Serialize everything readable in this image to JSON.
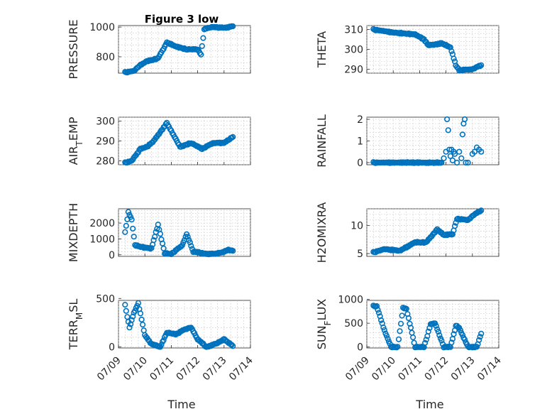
{
  "figure": {
    "title": "Figure 3 low",
    "marker_color": "#0072BD",
    "xlabel": "Time"
  },
  "chart_data": [
    {
      "type": "scatter",
      "ylabel": "PRESSURE",
      "ylabel_sub": "",
      "xticks": [
        "07/09",
        "07/10",
        "07/11",
        "07/12",
        "07/13",
        "07/14"
      ],
      "xlim": [
        "2023-07-09",
        "2023-07-14"
      ],
      "ylim": [
        690,
        1010
      ],
      "yticks": [
        800,
        1000
      ],
      "grid": true,
      "show_xlabels": false,
      "profile": [
        [
          "2023-07-09T06:00",
          695
        ],
        [
          "2023-07-09T14:00",
          705
        ],
        [
          "2023-07-09T20:00",
          745
        ],
        [
          "2023-07-10T02:00",
          770
        ],
        [
          "2023-07-10T12:00",
          790
        ],
        [
          "2023-07-10T20:00",
          895
        ],
        [
          "2023-07-11T04:00",
          870
        ],
        [
          "2023-07-11T14:00",
          850
        ],
        [
          "2023-07-12T00:00",
          850
        ],
        [
          "2023-07-12T03:00",
          815
        ],
        [
          "2023-07-12T06:00",
          985
        ],
        [
          "2023-07-12T12:00",
          1000
        ],
        [
          "2023-07-13T00:00",
          995
        ],
        [
          "2023-07-13T08:00",
          1005
        ]
      ]
    },
    {
      "type": "scatter",
      "ylabel": "THETA",
      "ylabel_sub": "",
      "xticks": [
        "07/09",
        "07/10",
        "07/11",
        "07/12",
        "07/13",
        "07/14"
      ],
      "xlim": [
        "2023-07-09",
        "2023-07-14"
      ],
      "ylim": [
        288,
        312
      ],
      "yticks": [
        290,
        300,
        310
      ],
      "grid": true,
      "show_xlabels": false,
      "profile": [
        [
          "2023-07-09T06:00",
          310
        ],
        [
          "2023-07-10T00:00",
          308.5
        ],
        [
          "2023-07-10T20:00",
          307.5
        ],
        [
          "2023-07-11T04:00",
          305
        ],
        [
          "2023-07-11T08:00",
          302
        ],
        [
          "2023-07-11T20:00",
          303
        ],
        [
          "2023-07-12T04:00",
          301
        ],
        [
          "2023-07-12T09:00",
          292
        ],
        [
          "2023-07-12T12:00",
          289.5
        ],
        [
          "2023-07-13T00:00",
          290
        ],
        [
          "2023-07-13T08:00",
          292
        ]
      ]
    },
    {
      "type": "scatter",
      "ylabel": "AIR",
      "ylabel_sub": "T",
      "ylabel_suffix": "EMP",
      "xticks": [
        "07/09",
        "07/10",
        "07/11",
        "07/12",
        "07/13",
        "07/14"
      ],
      "xlim": [
        "2023-07-09",
        "2023-07-14"
      ],
      "ylim": [
        278,
        302
      ],
      "yticks": [
        280,
        290,
        300
      ],
      "grid": true,
      "show_xlabels": false,
      "profile": [
        [
          "2023-07-09T06:00",
          279
        ],
        [
          "2023-07-09T12:00",
          280
        ],
        [
          "2023-07-09T20:00",
          286
        ],
        [
          "2023-07-10T02:00",
          287
        ],
        [
          "2023-07-10T08:00",
          290
        ],
        [
          "2023-07-10T20:00",
          299
        ],
        [
          "2023-07-11T08:00",
          287
        ],
        [
          "2023-07-11T18:00",
          289
        ],
        [
          "2023-07-12T04:00",
          286
        ],
        [
          "2023-07-12T14:00",
          289
        ],
        [
          "2023-07-13T00:00",
          289
        ],
        [
          "2023-07-13T08:00",
          292
        ]
      ]
    },
    {
      "type": "scatter",
      "ylabel": "RAINFALL",
      "ylabel_sub": "",
      "xticks": [
        "07/09",
        "07/10",
        "07/11",
        "07/12",
        "07/13",
        "07/14"
      ],
      "xlim": [
        "2023-07-09",
        "2023-07-14"
      ],
      "ylim": [
        -0.1,
        2.1
      ],
      "yticks": [
        0,
        1,
        2
      ],
      "grid": true,
      "show_xlabels": false,
      "profile": [
        [
          "2023-07-09T06:00",
          0
        ],
        [
          "2023-07-11T20:00",
          0
        ]
      ],
      "extra": [
        [
          "2023-07-11T22:00",
          0.2
        ],
        [
          "2023-07-12T00:00",
          0.5
        ],
        [
          "2023-07-12T01:00",
          2.0
        ],
        [
          "2023-07-12T02:00",
          1.5
        ],
        [
          "2023-07-12T03:00",
          0.6
        ],
        [
          "2023-07-12T04:00",
          0.3
        ],
        [
          "2023-07-12T05:00",
          0.6
        ],
        [
          "2023-07-12T06:00",
          0.1
        ],
        [
          "2023-07-12T07:00",
          0.5
        ],
        [
          "2023-07-12T08:00",
          0.4
        ],
        [
          "2023-07-12T10:00",
          0
        ],
        [
          "2023-07-12T12:00",
          0.5
        ],
        [
          "2023-07-12T14:00",
          0.2
        ],
        [
          "2023-07-12T15:00",
          1.3
        ],
        [
          "2023-07-12T16:00",
          1.8
        ],
        [
          "2023-07-12T17:00",
          2.0
        ],
        [
          "2023-07-12T18:00",
          0
        ],
        [
          "2023-07-12T20:00",
          0
        ],
        [
          "2023-07-13T00:00",
          0.4
        ],
        [
          "2023-07-13T02:00",
          0.5
        ],
        [
          "2023-07-13T04:00",
          0.7
        ],
        [
          "2023-07-13T06:00",
          0.6
        ],
        [
          "2023-07-13T08:00",
          0.5
        ]
      ]
    },
    {
      "type": "scatter",
      "ylabel": "MIXDEPTH",
      "ylabel_sub": "",
      "xticks": [
        "07/09",
        "07/10",
        "07/11",
        "07/12",
        "07/13",
        "07/14"
      ],
      "xlim": [
        "2023-07-09",
        "2023-07-14"
      ],
      "ylim": [
        -100,
        2900
      ],
      "yticks": [
        0,
        1000,
        2000
      ],
      "grid": true,
      "show_xlabels": false,
      "profile": [
        [
          "2023-07-09T06:00",
          1400
        ],
        [
          "2023-07-09T09:00",
          2700
        ],
        [
          "2023-07-09T12:00",
          2200
        ],
        [
          "2023-07-09T15:00",
          600
        ],
        [
          "2023-07-10T00:00",
          450
        ],
        [
          "2023-07-10T06:00",
          400
        ],
        [
          "2023-07-10T12:00",
          1900
        ],
        [
          "2023-07-10T18:00",
          100
        ],
        [
          "2023-07-11T00:00",
          50
        ],
        [
          "2023-07-11T10:00",
          600
        ],
        [
          "2023-07-11T14:00",
          1300
        ],
        [
          "2023-07-11T20:00",
          200
        ],
        [
          "2023-07-12T06:00",
          80
        ],
        [
          "2023-07-12T12:00",
          50
        ],
        [
          "2023-07-12T20:00",
          100
        ],
        [
          "2023-07-13T04:00",
          300
        ],
        [
          "2023-07-13T08:00",
          250
        ]
      ]
    },
    {
      "type": "scatter",
      "ylabel": "H2OMIXRA",
      "ylabel_sub": "",
      "xticks": [
        "07/09",
        "07/10",
        "07/11",
        "07/12",
        "07/13",
        "07/14"
      ],
      "xlim": [
        "2023-07-09",
        "2023-07-14"
      ],
      "ylim": [
        4.5,
        13
      ],
      "yticks": [
        5,
        10
      ],
      "grid": true,
      "show_xlabels": false,
      "profile": [
        [
          "2023-07-09T06:00",
          5.2
        ],
        [
          "2023-07-09T16:00",
          5.8
        ],
        [
          "2023-07-10T06:00",
          5.5
        ],
        [
          "2023-07-10T20:00",
          7.0
        ],
        [
          "2023-07-11T06:00",
          7.0
        ],
        [
          "2023-07-11T16:00",
          9.3
        ],
        [
          "2023-07-11T22:00",
          8.3
        ],
        [
          "2023-07-12T06:00",
          8.5
        ],
        [
          "2023-07-12T10:00",
          11.2
        ],
        [
          "2023-07-12T20:00",
          11.0
        ],
        [
          "2023-07-13T02:00",
          12.0
        ],
        [
          "2023-07-13T08:00",
          12.7
        ]
      ]
    },
    {
      "type": "scatter",
      "ylabel": "TERR",
      "ylabel_sub": "M",
      "ylabel_suffix": "SL",
      "xticks": [
        "07/09",
        "07/10",
        "07/11",
        "07/12",
        "07/13",
        "07/14"
      ],
      "xlim": [
        "2023-07-09",
        "2023-07-14"
      ],
      "ylim": [
        -10,
        480
      ],
      "yticks": [
        0,
        500
      ],
      "grid": true,
      "show_xlabels": true,
      "profile": [
        [
          "2023-07-09T06:00",
          430
        ],
        [
          "2023-07-09T10:00",
          200
        ],
        [
          "2023-07-09T14:00",
          350
        ],
        [
          "2023-07-09T18:00",
          450
        ],
        [
          "2023-07-10T00:00",
          120
        ],
        [
          "2023-07-10T06:00",
          30
        ],
        [
          "2023-07-10T14:00",
          0
        ],
        [
          "2023-07-10T20:00",
          150
        ],
        [
          "2023-07-11T04:00",
          130
        ],
        [
          "2023-07-11T12:00",
          180
        ],
        [
          "2023-07-11T18:00",
          200
        ],
        [
          "2023-07-12T00:00",
          80
        ],
        [
          "2023-07-12T08:00",
          0
        ],
        [
          "2023-07-12T18:00",
          40
        ],
        [
          "2023-07-13T00:00",
          80
        ],
        [
          "2023-07-13T08:00",
          10
        ]
      ]
    },
    {
      "type": "scatter",
      "ylabel": "SUN",
      "ylabel_sub": "F",
      "ylabel_suffix": "LUX",
      "xticks": [
        "07/09",
        "07/10",
        "07/11",
        "07/12",
        "07/13",
        "07/14"
      ],
      "xlim": [
        "2023-07-09",
        "2023-07-14"
      ],
      "ylim": [
        -20,
        980
      ],
      "yticks": [
        0,
        500,
        1000
      ],
      "grid": true,
      "show_xlabels": true,
      "profile": [
        [
          "2023-07-09T06:00",
          860
        ],
        [
          "2023-07-09T09:00",
          860
        ],
        [
          "2023-07-09T16:00",
          350
        ],
        [
          "2023-07-09T22:00",
          0
        ],
        [
          "2023-07-10T04:00",
          0
        ],
        [
          "2023-07-10T09:00",
          820
        ],
        [
          "2023-07-10T12:00",
          800
        ],
        [
          "2023-07-10T20:00",
          0
        ],
        [
          "2023-07-11T04:00",
          0
        ],
        [
          "2023-07-11T10:00",
          480
        ],
        [
          "2023-07-11T14:00",
          500
        ],
        [
          "2023-07-11T22:00",
          0
        ],
        [
          "2023-07-12T04:00",
          0
        ],
        [
          "2023-07-12T09:00",
          450
        ],
        [
          "2023-07-12T12:00",
          400
        ],
        [
          "2023-07-12T20:00",
          0
        ],
        [
          "2023-07-13T04:00",
          0
        ],
        [
          "2023-07-13T08:00",
          280
        ]
      ]
    }
  ]
}
